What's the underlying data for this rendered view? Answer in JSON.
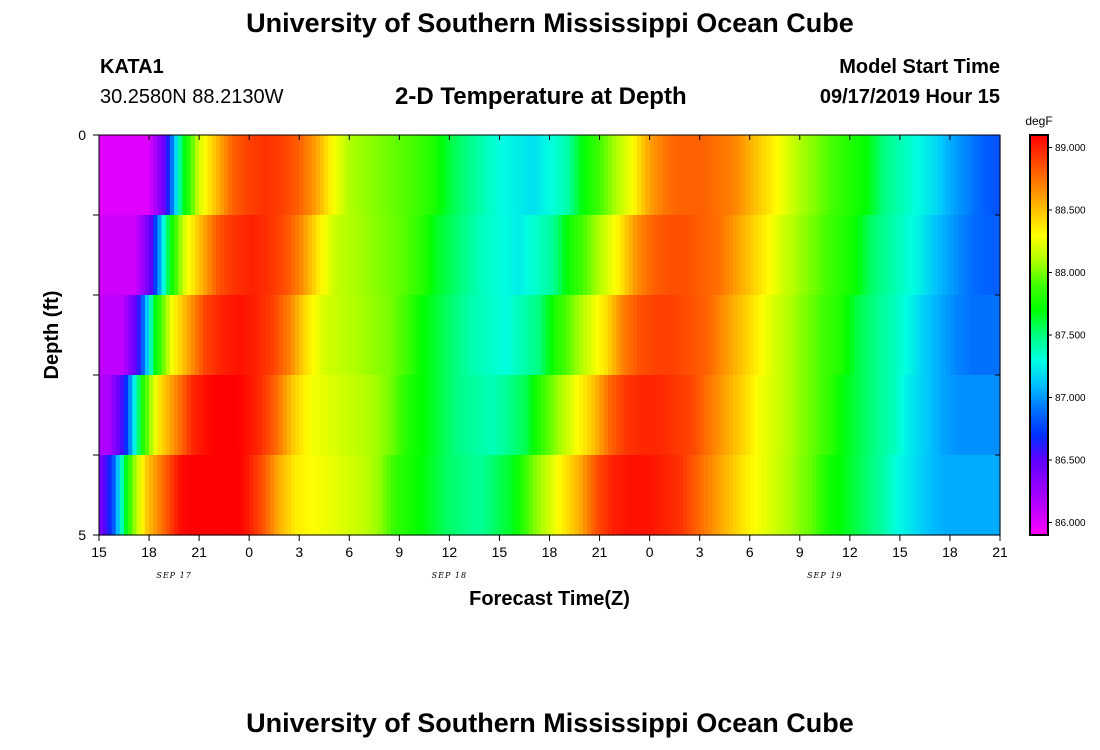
{
  "header": {
    "title": "University of Southern Mississippi Ocean Cube",
    "station": "KATA1",
    "coords": "30.2580N 88.2130W",
    "plot_title": "2-D Temperature at Depth",
    "model_start_label": "Model Start Time",
    "model_start_value": "09/17/2019 Hour 15"
  },
  "footer": {
    "title": "University of Southern Mississippi Ocean Cube"
  },
  "chart_data": {
    "type": "heatmap",
    "title": "2-D Temperature at Depth",
    "xlabel": "Forecast Time(Z)",
    "ylabel": "Depth (ft)",
    "x_tick_labels": [
      "15",
      "18",
      "21",
      "0",
      "3",
      "6",
      "9",
      "12",
      "15",
      "18",
      "21",
      "0",
      "3",
      "6",
      "9",
      "12",
      "15",
      "18",
      "21"
    ],
    "date_labels": [
      {
        "text": "SEP 17",
        "at_tick": 1.5
      },
      {
        "text": "SEP 18",
        "at_tick": 7
      },
      {
        "text": "SEP 19",
        "at_tick": 14.5
      }
    ],
    "y_tick_labels": [
      {
        "depth": 0,
        "text": "0"
      },
      {
        "depth": 1,
        "text": ""
      },
      {
        "depth": 2,
        "text": ""
      },
      {
        "depth": 3,
        "text": ""
      },
      {
        "depth": 4,
        "text": ""
      },
      {
        "depth": 5,
        "text": "5"
      }
    ],
    "x_hours_range": [
      0,
      54
    ],
    "depth_range": [
      0,
      5
    ],
    "depth_layers": [
      0,
      1,
      2,
      3,
      4
    ],
    "hours": [
      0,
      1,
      2,
      3,
      4,
      5,
      6,
      7,
      8,
      9,
      10,
      11,
      12,
      13,
      14,
      15,
      16,
      17,
      18,
      19,
      20,
      21,
      22,
      23,
      24,
      25,
      26,
      27,
      28,
      29,
      30,
      31,
      32,
      33,
      34,
      35,
      36,
      37,
      38,
      39,
      40,
      41,
      42,
      43,
      44,
      45,
      46,
      47,
      48,
      49,
      50,
      51,
      52,
      53,
      54
    ],
    "base_temps": [
      86.0,
      86.0,
      86.0,
      86.0,
      86.5,
      87.6,
      88.2,
      88.5,
      88.8,
      88.9,
      88.95,
      88.9,
      88.8,
      88.6,
      88.3,
      88.1,
      88.05,
      88.0,
      87.95,
      87.9,
      87.8,
      87.6,
      87.5,
      87.4,
      87.3,
      87.25,
      87.2,
      87.3,
      87.4,
      87.7,
      87.9,
      88.1,
      88.3,
      88.6,
      88.75,
      88.8,
      88.8,
      88.75,
      88.7,
      88.55,
      88.4,
      88.25,
      88.1,
      88.0,
      87.9,
      87.8,
      87.7,
      87.5,
      87.4,
      87.3,
      87.2,
      87.05,
      86.95,
      86.85,
      86.8
    ],
    "layer_shift_hours": [
      0,
      -0.8,
      -1.6,
      -2.4,
      -3.2
    ],
    "layer_offsets_degF": [
      0,
      0.05,
      0.1,
      0.18,
      0.25
    ],
    "colorbar": {
      "unit": "degF",
      "min": 85.9,
      "max": 89.1,
      "tick_values": [
        86.0,
        86.5,
        87.0,
        87.5,
        88.0,
        88.5,
        89.0
      ],
      "tick_labels": [
        "86.000",
        "86.500",
        "87.000",
        "87.500",
        "88.000",
        "88.500",
        "89.000"
      ],
      "colors": [
        "#ff00ff",
        "#c000ff",
        "#9000ff",
        "#6000ff",
        "#0030ff",
        "#0070ff",
        "#00c0ff",
        "#00ffe0",
        "#00ff80",
        "#00ff00",
        "#40ff00",
        "#b0ff00",
        "#ffff00",
        "#ffc000",
        "#ff8000",
        "#ff4000",
        "#ff0000"
      ]
    }
  }
}
